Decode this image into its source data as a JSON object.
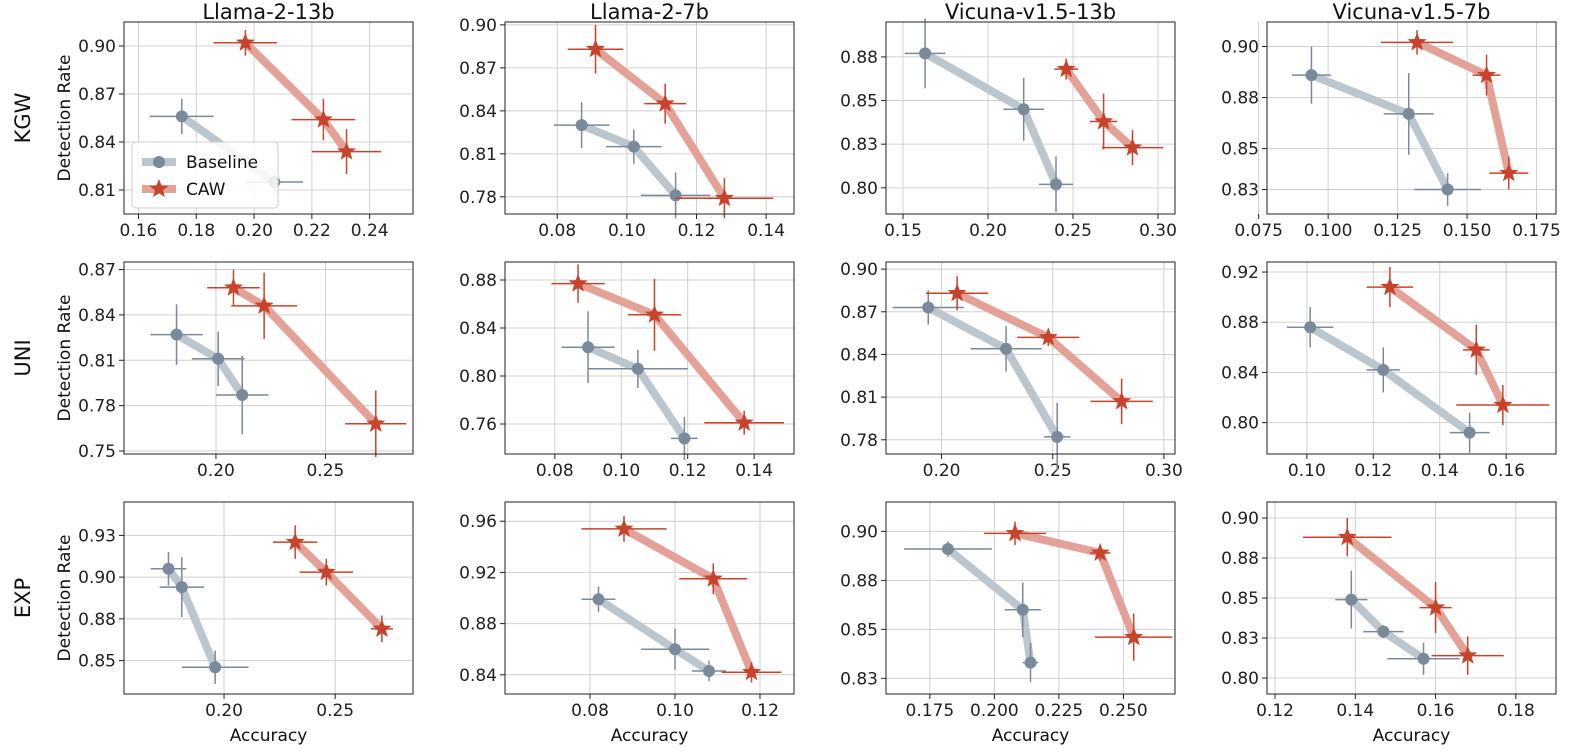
{
  "colors": {
    "baseline": "#7a8a9a",
    "baseline_line": "#bcc6ce",
    "caw": "#c8432b",
    "caw_line": "#e3a197",
    "grid": "#d0d0d0"
  },
  "legend": {
    "baseline": "Baseline",
    "caw": "CAW"
  },
  "axis_labels": {
    "y": "Detection Rate",
    "x": "Accuracy"
  },
  "columns": [
    "Llama-2-13b",
    "Llama-2-7b",
    "Vicuna-v1.5-13b",
    "Vicuna-v1.5-7b"
  ],
  "rows": [
    "KGW",
    "UNI",
    "EXP"
  ],
  "chart_data": [
    {
      "type": "scatter",
      "row": "KGW",
      "model": "Llama-2-13b",
      "xlim": [
        0.155,
        0.255
      ],
      "ylim": [
        0.795,
        0.915
      ],
      "xticks": [
        "0.16",
        "0.18",
        "0.20",
        "0.22",
        "0.24"
      ],
      "xtick_vals": [
        0.16,
        0.18,
        0.2,
        0.22,
        0.24
      ],
      "yticks": [
        "0.81",
        "0.84",
        "0.87",
        "0.90"
      ],
      "ytick_vals": [
        0.81,
        0.84,
        0.87,
        0.9
      ],
      "series": [
        {
          "name": "Baseline",
          "points": [
            [
              0.175,
              0.856,
              0.011,
              0.011
            ],
            [
              0.207,
              0.815,
              0.01,
              0.008
            ]
          ]
        },
        {
          "name": "CAW",
          "points": [
            [
              0.197,
              0.902,
              0.011,
              0.008
            ],
            [
              0.224,
              0.854,
              0.011,
              0.013
            ],
            [
              0.232,
              0.834,
              0.012,
              0.014
            ]
          ]
        }
      ]
    },
    {
      "type": "scatter",
      "row": "KGW",
      "model": "Llama-2-7b",
      "xlim": [
        0.065,
        0.148
      ],
      "ylim": [
        0.768,
        0.902
      ],
      "xticks": [
        "0.08",
        "0.10",
        "0.12",
        "0.14"
      ],
      "xtick_vals": [
        0.08,
        0.1,
        0.12,
        0.14
      ],
      "yticks": [
        "0.78",
        "0.81",
        "0.84",
        "0.87",
        "0.90"
      ],
      "ytick_vals": [
        0.78,
        0.81,
        0.84,
        0.87,
        0.9
      ],
      "series": [
        {
          "name": "Baseline",
          "points": [
            [
              0.087,
              0.83,
              0.008,
              0.016
            ],
            [
              0.102,
              0.815,
              0.008,
              0.012
            ],
            [
              0.114,
              0.781,
              0.01,
              0.016
            ]
          ]
        },
        {
          "name": "CAW",
          "points": [
            [
              0.091,
              0.883,
              0.008,
              0.017
            ],
            [
              0.111,
              0.845,
              0.006,
              0.014
            ],
            [
              0.128,
              0.779,
              0.014,
              0.014
            ]
          ]
        }
      ]
    },
    {
      "type": "scatter",
      "row": "KGW",
      "model": "Vicuna-v1.5-13b",
      "xlim": [
        0.14,
        0.31
      ],
      "ylim": [
        0.785,
        0.895
      ],
      "xticks": [
        "0.15",
        "0.20",
        "0.25",
        "0.30"
      ],
      "xtick_vals": [
        0.15,
        0.2,
        0.25,
        0.3
      ],
      "yticks": [
        "0.80",
        "0.83",
        "0.85",
        "0.88"
      ],
      "ytick_vals": [
        0.8,
        0.825,
        0.85,
        0.875
      ],
      "series": [
        {
          "name": "Baseline",
          "points": [
            [
              0.163,
              0.877,
              0.012,
              0.02
            ],
            [
              0.221,
              0.845,
              0.012,
              0.018
            ],
            [
              0.24,
              0.802,
              0.01,
              0.016
            ]
          ]
        },
        {
          "name": "CAW",
          "points": [
            [
              0.246,
              0.868,
              0.007,
              0.006
            ],
            [
              0.268,
              0.838,
              0.008,
              0.016
            ],
            [
              0.285,
              0.823,
              0.018,
              0.01
            ]
          ]
        }
      ]
    },
    {
      "type": "scatter",
      "row": "KGW",
      "model": "Vicuna-v1.5-7b",
      "xlim": [
        0.078,
        0.182
      ],
      "ylim": [
        0.818,
        0.912
      ],
      "xticks": [
        "0.075",
        "0.100",
        "0.125",
        "0.150",
        "0.175"
      ],
      "xtick_vals": [
        0.075,
        0.1,
        0.125,
        0.15,
        0.175
      ],
      "yticks": [
        "0.83",
        "0.85",
        "0.88",
        "0.90"
      ],
      "ytick_vals": [
        0.83,
        0.85,
        0.875,
        0.9
      ],
      "series": [
        {
          "name": "Baseline",
          "points": [
            [
              0.094,
              0.886,
              0.007,
              0.014
            ],
            [
              0.129,
              0.867,
              0.009,
              0.02
            ],
            [
              0.143,
              0.83,
              0.012,
              0.008
            ]
          ]
        },
        {
          "name": "CAW",
          "points": [
            [
              0.132,
              0.902,
              0.013,
              0.006
            ],
            [
              0.157,
              0.886,
              0.005,
              0.01
            ],
            [
              0.165,
              0.838,
              0.007,
              0.008
            ]
          ]
        }
      ]
    },
    {
      "type": "scatter",
      "row": "UNI",
      "model": "Llama-2-13b",
      "xlim": [
        0.158,
        0.29
      ],
      "ylim": [
        0.748,
        0.875
      ],
      "xticks": [
        "0.20",
        "0.25"
      ],
      "xtick_vals": [
        0.2,
        0.25
      ],
      "yticks": [
        "0.75",
        "0.78",
        "0.81",
        "0.84",
        "0.87"
      ],
      "ytick_vals": [
        0.75,
        0.78,
        0.81,
        0.84,
        0.87
      ],
      "series": [
        {
          "name": "Baseline",
          "points": [
            [
              0.182,
              0.827,
              0.012,
              0.02
            ],
            [
              0.201,
              0.811,
              0.012,
              0.018
            ],
            [
              0.212,
              0.787,
              0.012,
              0.026
            ]
          ]
        },
        {
          "name": "CAW",
          "points": [
            [
              0.208,
              0.858,
              0.012,
              0.012
            ],
            [
              0.222,
              0.846,
              0.015,
              0.022
            ],
            [
              0.273,
              0.768,
              0.014,
              0.022
            ]
          ]
        }
      ]
    },
    {
      "type": "scatter",
      "row": "UNI",
      "model": "Llama-2-7b",
      "xlim": [
        0.065,
        0.152
      ],
      "ylim": [
        0.735,
        0.895
      ],
      "xticks": [
        "0.08",
        "0.10",
        "0.12",
        "0.14"
      ],
      "xtick_vals": [
        0.08,
        0.1,
        0.12,
        0.14
      ],
      "yticks": [
        "0.76",
        "0.80",
        "0.84",
        "0.88"
      ],
      "ytick_vals": [
        0.76,
        0.8,
        0.84,
        0.88
      ],
      "series": [
        {
          "name": "Baseline",
          "points": [
            [
              0.09,
              0.824,
              0.008,
              0.03
            ],
            [
              0.105,
              0.806,
              0.015,
              0.016
            ],
            [
              0.119,
              0.748,
              0.004,
              0.018
            ]
          ]
        },
        {
          "name": "CAW",
          "points": [
            [
              0.087,
              0.877,
              0.008,
              0.016
            ],
            [
              0.11,
              0.851,
              0.008,
              0.03
            ],
            [
              0.137,
              0.761,
              0.012,
              0.01
            ]
          ]
        }
      ]
    },
    {
      "type": "scatter",
      "row": "UNI",
      "model": "Vicuna-v1.5-13b",
      "xlim": [
        0.175,
        0.305
      ],
      "ylim": [
        0.77,
        0.905
      ],
      "xticks": [
        "0.20",
        "0.25",
        "0.30"
      ],
      "xtick_vals": [
        0.2,
        0.25,
        0.3
      ],
      "yticks": [
        "0.78",
        "0.81",
        "0.84",
        "0.87",
        "0.90"
      ],
      "ytick_vals": [
        0.78,
        0.81,
        0.84,
        0.87,
        0.9
      ],
      "series": [
        {
          "name": "Baseline",
          "points": [
            [
              0.194,
              0.873,
              0.016,
              0.012
            ],
            [
              0.229,
              0.844,
              0.016,
              0.016
            ],
            [
              0.252,
              0.782,
              0.006,
              0.024
            ]
          ]
        },
        {
          "name": "CAW",
          "points": [
            [
              0.207,
              0.883,
              0.014,
              0.012
            ],
            [
              0.248,
              0.852,
              0.014,
              0.006
            ],
            [
              0.281,
              0.807,
              0.014,
              0.016
            ]
          ]
        }
      ]
    },
    {
      "type": "scatter",
      "row": "UNI",
      "model": "Vicuna-v1.5-7b",
      "xlim": [
        0.088,
        0.175
      ],
      "ylim": [
        0.775,
        0.928
      ],
      "xticks": [
        "0.10",
        "0.12",
        "0.14",
        "0.16"
      ],
      "xtick_vals": [
        0.1,
        0.12,
        0.14,
        0.16
      ],
      "yticks": [
        "0.80",
        "0.84",
        "0.88",
        "0.92"
      ],
      "ytick_vals": [
        0.8,
        0.84,
        0.88,
        0.92
      ],
      "series": [
        {
          "name": "Baseline",
          "points": [
            [
              0.101,
              0.876,
              0.007,
              0.016
            ],
            [
              0.123,
              0.842,
              0.005,
              0.018
            ],
            [
              0.149,
              0.792,
              0.006,
              0.016
            ]
          ]
        },
        {
          "name": "CAW",
          "points": [
            [
              0.125,
              0.908,
              0.007,
              0.016
            ],
            [
              0.151,
              0.858,
              0.004,
              0.02
            ],
            [
              0.159,
              0.814,
              0.014,
              0.016
            ]
          ]
        }
      ]
    },
    {
      "type": "scatter",
      "row": "EXP",
      "model": "Llama-2-13b",
      "xlim": [
        0.155,
        0.285
      ],
      "ylim": [
        0.83,
        0.945
      ],
      "xticks": [
        "0.20",
        "0.25"
      ],
      "xtick_vals": [
        0.2,
        0.25
      ],
      "yticks": [
        "0.85",
        "0.88",
        "0.90",
        "0.93"
      ],
      "ytick_vals": [
        0.85,
        0.875,
        0.9,
        0.925
      ],
      "series": [
        {
          "name": "Baseline",
          "points": [
            [
              0.175,
              0.905,
              0.008,
              0.01
            ],
            [
              0.181,
              0.894,
              0.01,
              0.018
            ],
            [
              0.196,
              0.846,
              0.015,
              0.01
            ]
          ]
        },
        {
          "name": "CAW",
          "points": [
            [
              0.232,
              0.921,
              0.01,
              0.01
            ],
            [
              0.246,
              0.903,
              0.012,
              0.008
            ],
            [
              0.271,
              0.869,
              0.005,
              0.008
            ]
          ]
        }
      ]
    },
    {
      "type": "scatter",
      "row": "EXP",
      "model": "Llama-2-7b",
      "xlim": [
        0.06,
        0.128
      ],
      "ylim": [
        0.825,
        0.975
      ],
      "xticks": [
        "0.08",
        "0.10",
        "0.12"
      ],
      "xtick_vals": [
        0.08,
        0.1,
        0.12
      ],
      "yticks": [
        "0.84",
        "0.88",
        "0.92",
        "0.96"
      ],
      "ytick_vals": [
        0.84,
        0.88,
        0.92,
        0.96
      ],
      "series": [
        {
          "name": "Baseline",
          "points": [
            [
              0.082,
              0.899,
              0.004,
              0.01
            ],
            [
              0.1,
              0.86,
              0.008,
              0.016
            ],
            [
              0.108,
              0.843,
              0.004,
              0.008
            ]
          ]
        },
        {
          "name": "CAW",
          "points": [
            [
              0.088,
              0.954,
              0.01,
              0.01
            ],
            [
              0.109,
              0.915,
              0.008,
              0.012
            ],
            [
              0.118,
              0.842,
              0.007,
              0.008
            ]
          ]
        }
      ]
    },
    {
      "type": "scatter",
      "row": "EXP",
      "model": "Vicuna-v1.5-13b",
      "xlim": [
        0.158,
        0.27
      ],
      "ylim": [
        0.817,
        0.915
      ],
      "xticks": [
        "0.175",
        "0.200",
        "0.225",
        "0.250"
      ],
      "xtick_vals": [
        0.175,
        0.2,
        0.225,
        0.25
      ],
      "yticks": [
        "0.83",
        "0.85",
        "0.88",
        "0.90"
      ],
      "ytick_vals": [
        0.825,
        0.85,
        0.875,
        0.9
      ],
      "series": [
        {
          "name": "Baseline",
          "points": [
            [
              0.182,
              0.891,
              0.017,
              0.004
            ],
            [
              0.211,
              0.86,
              0.007,
              0.014
            ],
            [
              0.214,
              0.833,
              0.003,
              0.01
            ]
          ]
        },
        {
          "name": "CAW",
          "points": [
            [
              0.208,
              0.899,
              0.012,
              0.006
            ],
            [
              0.241,
              0.889,
              0.004,
              0.004
            ],
            [
              0.254,
              0.846,
              0.015,
              0.012
            ]
          ]
        }
      ]
    },
    {
      "type": "scatter",
      "row": "EXP",
      "model": "Vicuna-v1.5-7b",
      "xlim": [
        0.118,
        0.19
      ],
      "ylim": [
        0.79,
        0.91
      ],
      "xticks": [
        "0.12",
        "0.14",
        "0.16",
        "0.18"
      ],
      "xtick_vals": [
        0.12,
        0.14,
        0.16,
        0.18
      ],
      "yticks": [
        "0.80",
        "0.83",
        "0.85",
        "0.88",
        "0.90"
      ],
      "ytick_vals": [
        0.8,
        0.825,
        0.85,
        0.875,
        0.9
      ],
      "series": [
        {
          "name": "Baseline",
          "points": [
            [
              0.139,
              0.849,
              0.004,
              0.018
            ],
            [
              0.147,
              0.829,
              0.005,
              0.004
            ],
            [
              0.157,
              0.812,
              0.009,
              0.01
            ]
          ]
        },
        {
          "name": "CAW",
          "points": [
            [
              0.138,
              0.888,
              0.011,
              0.012
            ],
            [
              0.16,
              0.844,
              0.004,
              0.016
            ],
            [
              0.168,
              0.814,
              0.009,
              0.012
            ]
          ]
        }
      ]
    }
  ]
}
